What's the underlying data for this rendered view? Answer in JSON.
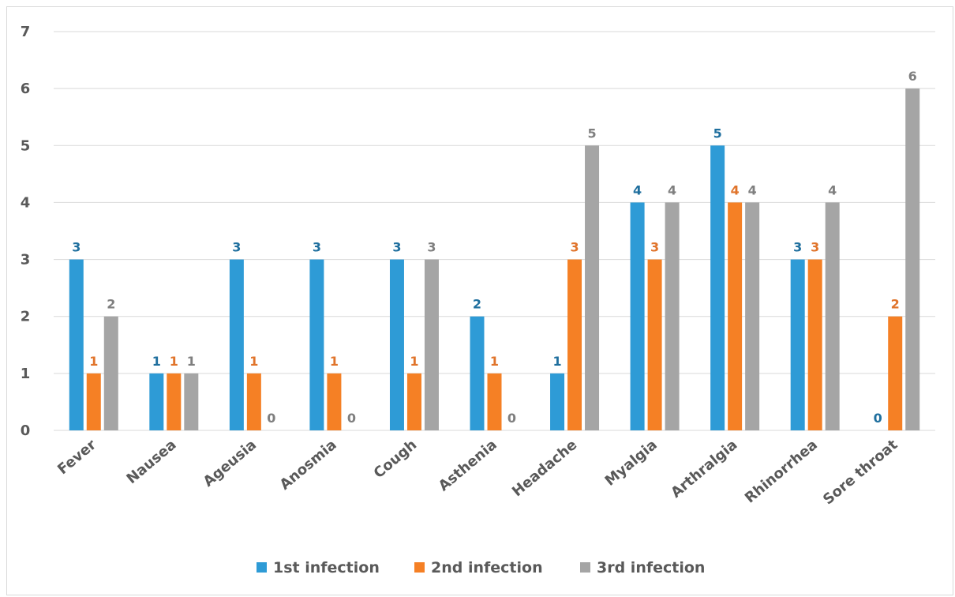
{
  "chart_data": {
    "type": "bar",
    "categories": [
      "Fever",
      "Nausea",
      "Ageusia",
      "Anosmia",
      "Cough",
      "Asthenia",
      "Headache",
      "Myalgia",
      "Arthralgia",
      "Rhinorrhea",
      "Sore throat"
    ],
    "series": [
      {
        "name": "1st infection",
        "color": "#2e9bd6",
        "label_color": "#1f6f9e",
        "values": [
          3,
          1,
          3,
          3,
          3,
          2,
          1,
          4,
          5,
          3,
          0
        ]
      },
      {
        "name": "2nd infection",
        "color": "#f58025",
        "label_color": "#e0742b",
        "values": [
          1,
          1,
          1,
          1,
          1,
          1,
          3,
          3,
          4,
          3,
          2
        ]
      },
      {
        "name": "3rd infection",
        "color": "#a5a5a5",
        "label_color": "#7f7f7f",
        "values": [
          2,
          1,
          0,
          0,
          3,
          0,
          5,
          4,
          4,
          4,
          6
        ]
      }
    ],
    "yticks": [
      "0",
      "1",
      "2",
      "3",
      "4",
      "5",
      "6",
      "7"
    ],
    "ylim": [
      0,
      7
    ],
    "grid": true,
    "legend_position": "bottom"
  }
}
